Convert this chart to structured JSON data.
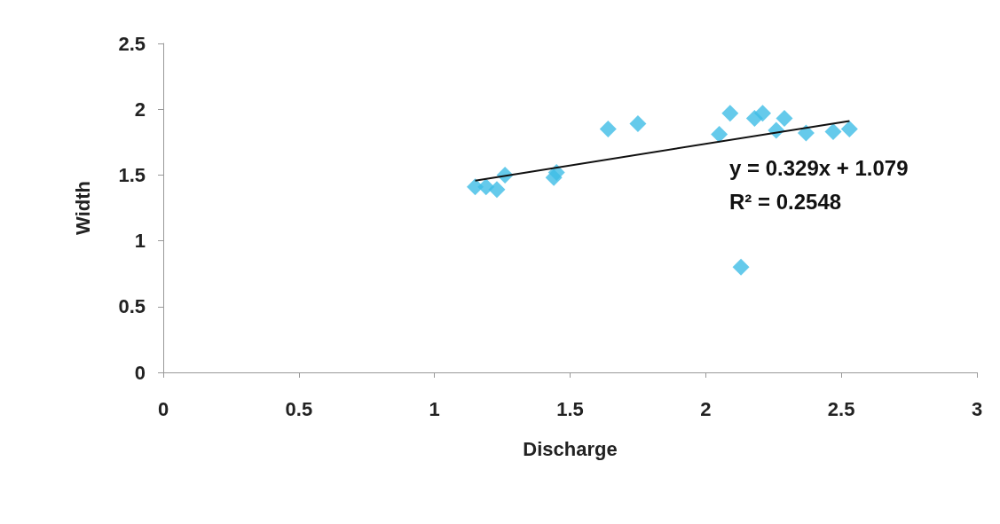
{
  "chart_data": {
    "type": "scatter",
    "xlabel": "Discharge",
    "ylabel": "Width",
    "xlim": [
      0,
      3
    ],
    "xticks": [
      0,
      0.5,
      1,
      1.5,
      2,
      2.5,
      3
    ],
    "ylim": [
      0,
      2.5
    ],
    "yticks": [
      0,
      0.5,
      1,
      1.5,
      2,
      2.5
    ],
    "grid": false,
    "marker": "diamond",
    "series": [
      {
        "color": "#3fbde6",
        "x": [
          1.15,
          1.19,
          1.23,
          1.26,
          1.44,
          1.45,
          1.64,
          1.75,
          2.05,
          2.09,
          2.13,
          2.18,
          2.21,
          2.26,
          2.29,
          2.37,
          2.47,
          2.53
        ],
        "values": [
          1.41,
          1.41,
          1.39,
          1.5,
          1.48,
          1.52,
          1.85,
          1.89,
          1.81,
          1.97,
          0.8,
          1.93,
          1.97,
          1.84,
          1.93,
          1.82,
          1.83,
          1.85
        ]
      },
      {
        "type": "line",
        "color": "#111111",
        "marker": "none",
        "line_style": "solid",
        "x": [
          1.15,
          2.53
        ],
        "values": [
          1.457,
          1.911
        ]
      }
    ],
    "annotations": [
      "y = 0.329x + 1.079",
      "R² = 0.2548"
    ]
  }
}
